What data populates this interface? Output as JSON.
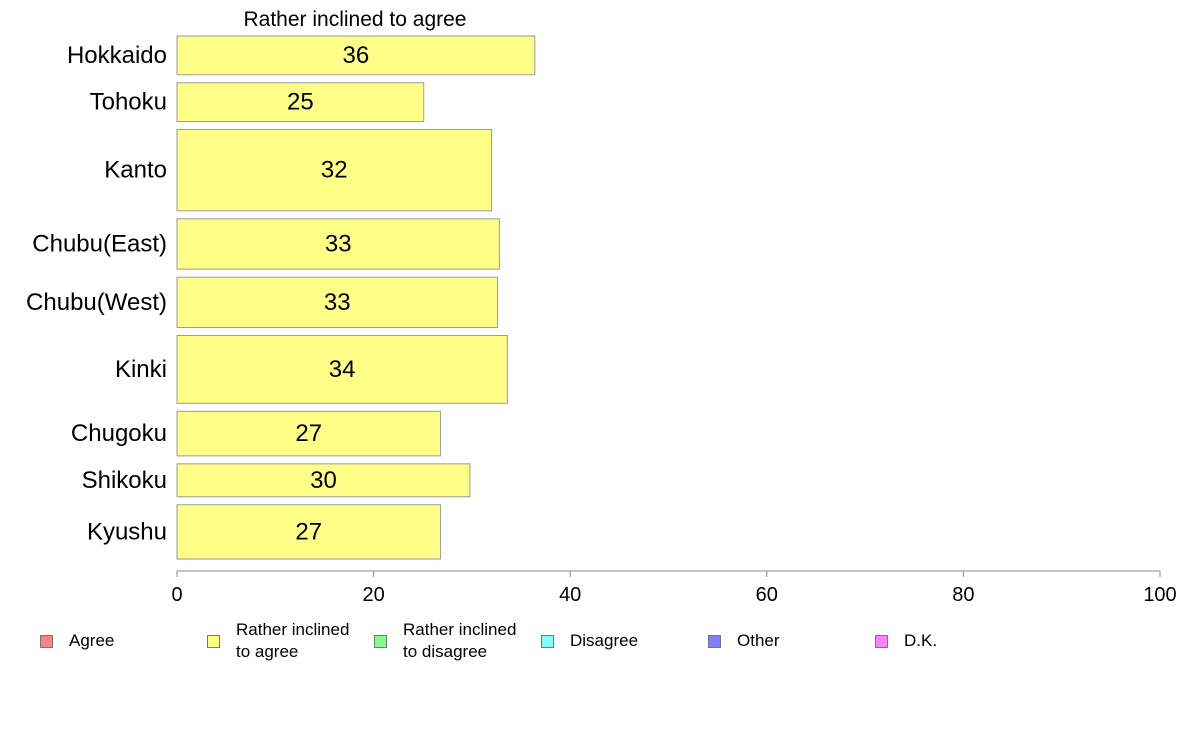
{
  "chart_data": {
    "type": "bar",
    "orientation": "horizontal",
    "title": "Rather inclined to agree",
    "categories": [
      "Hokkaido",
      "Tohoku",
      "Kanto",
      "Chubu(East)",
      "Chubu(West)",
      "Kinki",
      "Chugoku",
      "Shikoku",
      "Kyushu"
    ],
    "values": [
      36.4,
      25.1,
      32.0,
      32.8,
      32.6,
      33.6,
      26.8,
      29.8,
      26.8
    ],
    "value_labels": [
      "36",
      "25",
      "32",
      "33",
      "33",
      "34",
      "27",
      "30",
      "27"
    ],
    "relative_bar_widths": [
      1,
      1,
      2.1,
      1.3,
      1.3,
      1.75,
      1.15,
      0.85,
      1.4
    ],
    "xlim": [
      0,
      100
    ],
    "xticks": [
      "0",
      "20",
      "40",
      "60",
      "80",
      "100"
    ],
    "xlabel": "",
    "ylabel": "",
    "grid": false,
    "bar_color": "#ffff88",
    "legend": {
      "position": "bottom",
      "items": [
        {
          "label": "Agree",
          "color": "#ff8080"
        },
        {
          "label": "Rather inclined\nto agree",
          "color": "#ffff80"
        },
        {
          "label": "Rather inclined\nto disagree",
          "color": "#80ff80"
        },
        {
          "label": "Disagree",
          "color": "#80ffff"
        },
        {
          "label": "Other",
          "color": "#8080ff"
        },
        {
          "label": "D.K.",
          "color": "#ff80ff"
        }
      ]
    }
  }
}
